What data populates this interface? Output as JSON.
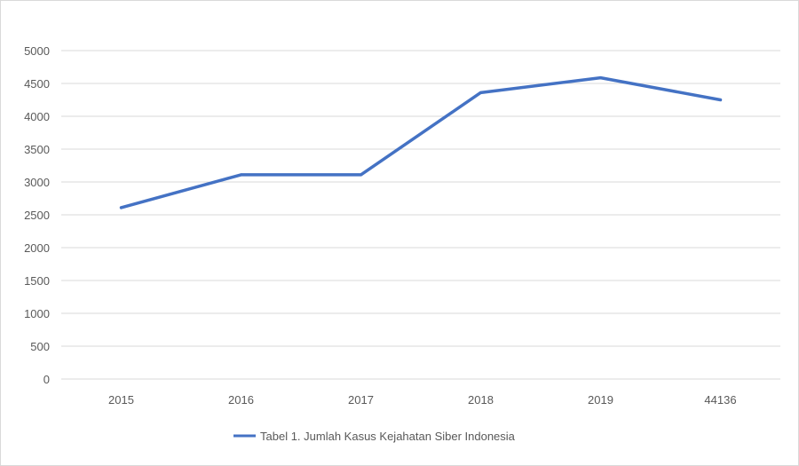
{
  "chart_data": {
    "type": "line",
    "categories": [
      "2015",
      "2016",
      "2017",
      "2018",
      "2019",
      "44136"
    ],
    "series": [
      {
        "name": "Tabel 1. Jumlah Kasus Kejahatan Siber Indonesia",
        "values": [
          2609,
          3109,
          3109,
          4360,
          4586,
          4250
        ],
        "color": "#4472c4"
      }
    ],
    "ylim": [
      0,
      5000
    ],
    "yticks": [
      "0",
      "500",
      "1000",
      "1500",
      "2000",
      "2500",
      "3000",
      "3500",
      "4000",
      "4500",
      "5000"
    ],
    "grid": true,
    "legend_position": "bottom",
    "title": "",
    "xlabel": "",
    "ylabel": ""
  }
}
